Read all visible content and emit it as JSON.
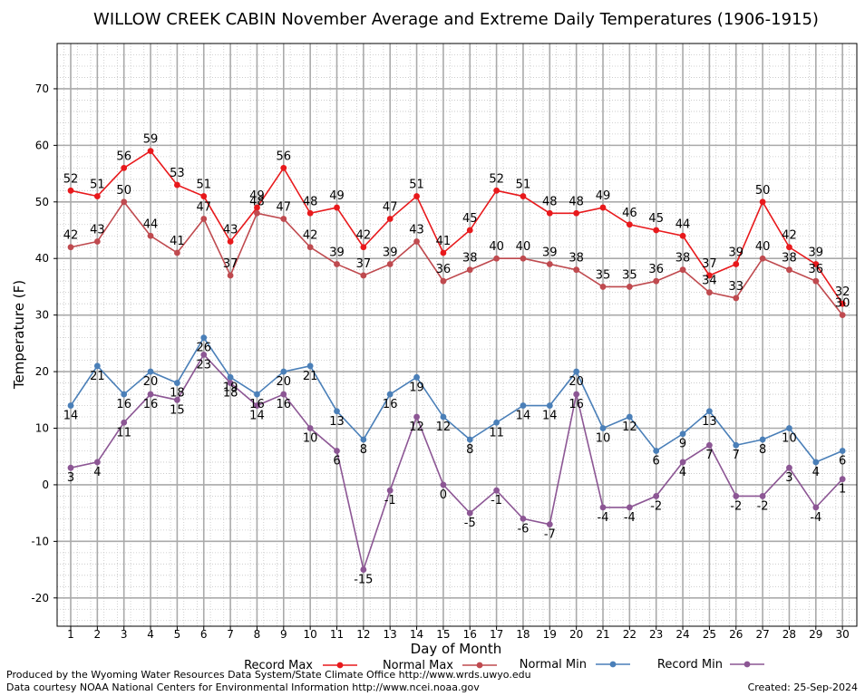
{
  "chart_data": {
    "type": "line",
    "title": "WILLOW CREEK CABIN November Average and Extreme Daily Temperatures (1906-1915)",
    "xlabel": "Day of Month",
    "ylabel": "Temperature (F)",
    "ylim": [
      -25,
      78
    ],
    "yticks": [
      -20,
      -10,
      0,
      10,
      20,
      30,
      40,
      50,
      60,
      70
    ],
    "x": [
      1,
      2,
      3,
      4,
      5,
      6,
      7,
      8,
      9,
      10,
      11,
      12,
      13,
      14,
      15,
      16,
      17,
      18,
      19,
      20,
      21,
      22,
      23,
      24,
      25,
      26,
      27,
      28,
      29,
      30
    ],
    "grid": true,
    "legend_position": "bottom",
    "series": [
      {
        "name": "Record Max",
        "color": "#e8191c",
        "values": [
          52,
          51,
          56,
          59,
          53,
          51,
          43,
          49,
          56,
          48,
          49,
          42,
          47,
          51,
          41,
          45,
          52,
          51,
          48,
          48,
          49,
          46,
          45,
          44,
          37,
          39,
          50,
          42,
          39,
          32
        ]
      },
      {
        "name": "Normal Max",
        "color": "#bf4a4f",
        "values": [
          42,
          43,
          50,
          44,
          41,
          47,
          37,
          48,
          47,
          42,
          39,
          37,
          39,
          43,
          36,
          38,
          40,
          40,
          39,
          38,
          35,
          35,
          36,
          38,
          34,
          33,
          40,
          38,
          36,
          30
        ]
      },
      {
        "name": "Normal Min",
        "color": "#4a7fb8",
        "values": [
          14,
          21,
          16,
          20,
          18,
          26,
          19,
          16,
          20,
          21,
          13,
          8,
          16,
          19,
          12,
          8,
          11,
          14,
          14,
          20,
          10,
          12,
          6,
          9,
          13,
          7,
          8,
          10,
          4,
          6
        ]
      },
      {
        "name": "Record Min",
        "color": "#8c5694",
        "values": [
          3,
          4,
          11,
          16,
          15,
          23,
          18,
          14,
          16,
          10,
          6,
          -15,
          -1,
          12,
          0,
          -5,
          -1,
          -6,
          -7,
          16,
          -4,
          -4,
          -2,
          4,
          7,
          -2,
          -2,
          3,
          -4,
          1
        ]
      }
    ]
  },
  "footer": {
    "produced_by": "Produced by the Wyoming Water Resources Data System/State Climate Office http://www.wrds.uwyo.edu",
    "data_courtesy": "Data courtesy NOAA National Centers for Environmental Information http://www.ncei.noaa.gov",
    "created": "Created: 25-Sep-2024"
  }
}
